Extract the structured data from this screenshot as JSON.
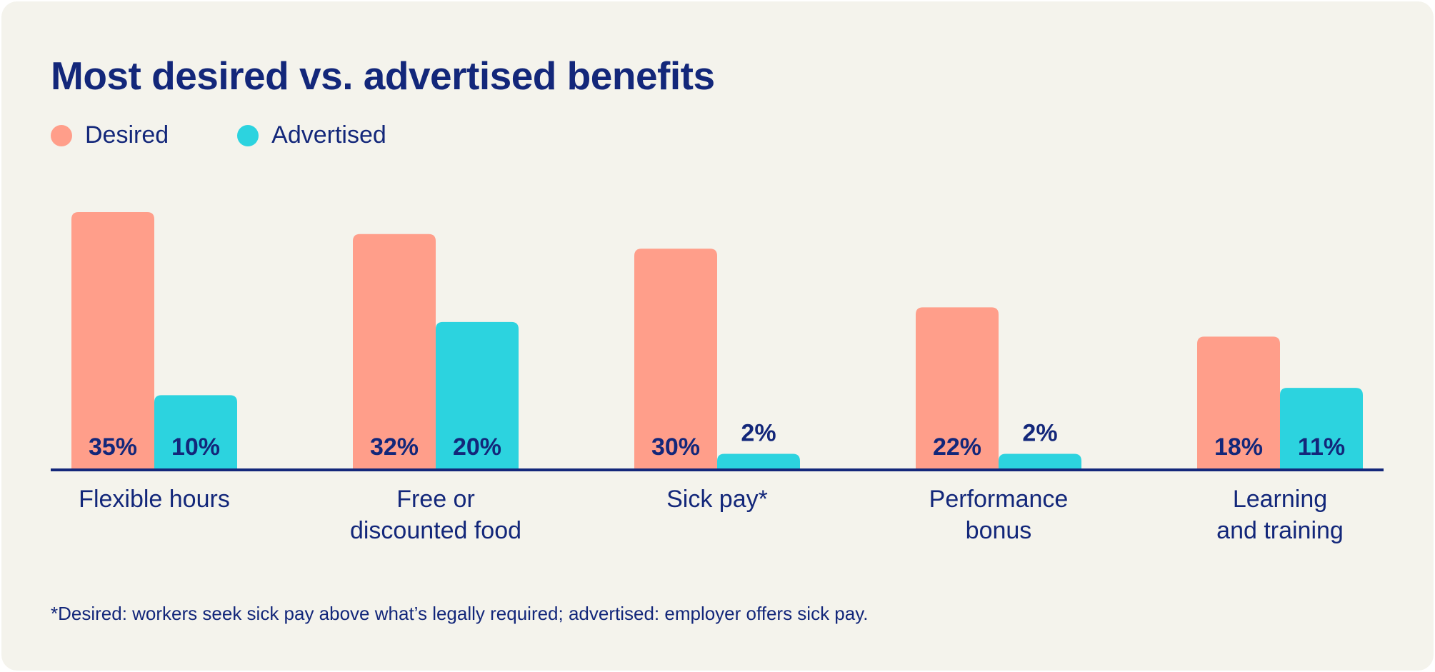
{
  "chart_data": {
    "type": "bar",
    "title": "Most desired vs. advertised benefits",
    "categories": [
      [
        "Flexible hours"
      ],
      [
        "Free or",
        "discounted food"
      ],
      [
        "Sick pay*"
      ],
      [
        "Performance",
        "bonus"
      ],
      [
        "Learning",
        "and training"
      ]
    ],
    "series": [
      {
        "name": "Desired",
        "color": "#ff9e8a",
        "values": [
          35,
          32,
          30,
          22,
          18
        ],
        "labels": [
          "35%",
          "32%",
          "30%",
          "22%",
          "18%"
        ]
      },
      {
        "name": "Advertised",
        "color": "#2cd3df",
        "values": [
          10,
          20,
          2,
          2,
          11
        ],
        "labels": [
          "10%",
          "20%",
          "2%",
          "2%",
          "11%"
        ]
      }
    ],
    "ylim": [
      0,
      35
    ],
    "grid": false,
    "legend": "top-left",
    "footnote": "*Desired: workers seek sick pay above what’s legally required; advertised: employer offers sick pay."
  },
  "colors": {
    "text": "#13277a",
    "background": "#f4f3ec"
  }
}
